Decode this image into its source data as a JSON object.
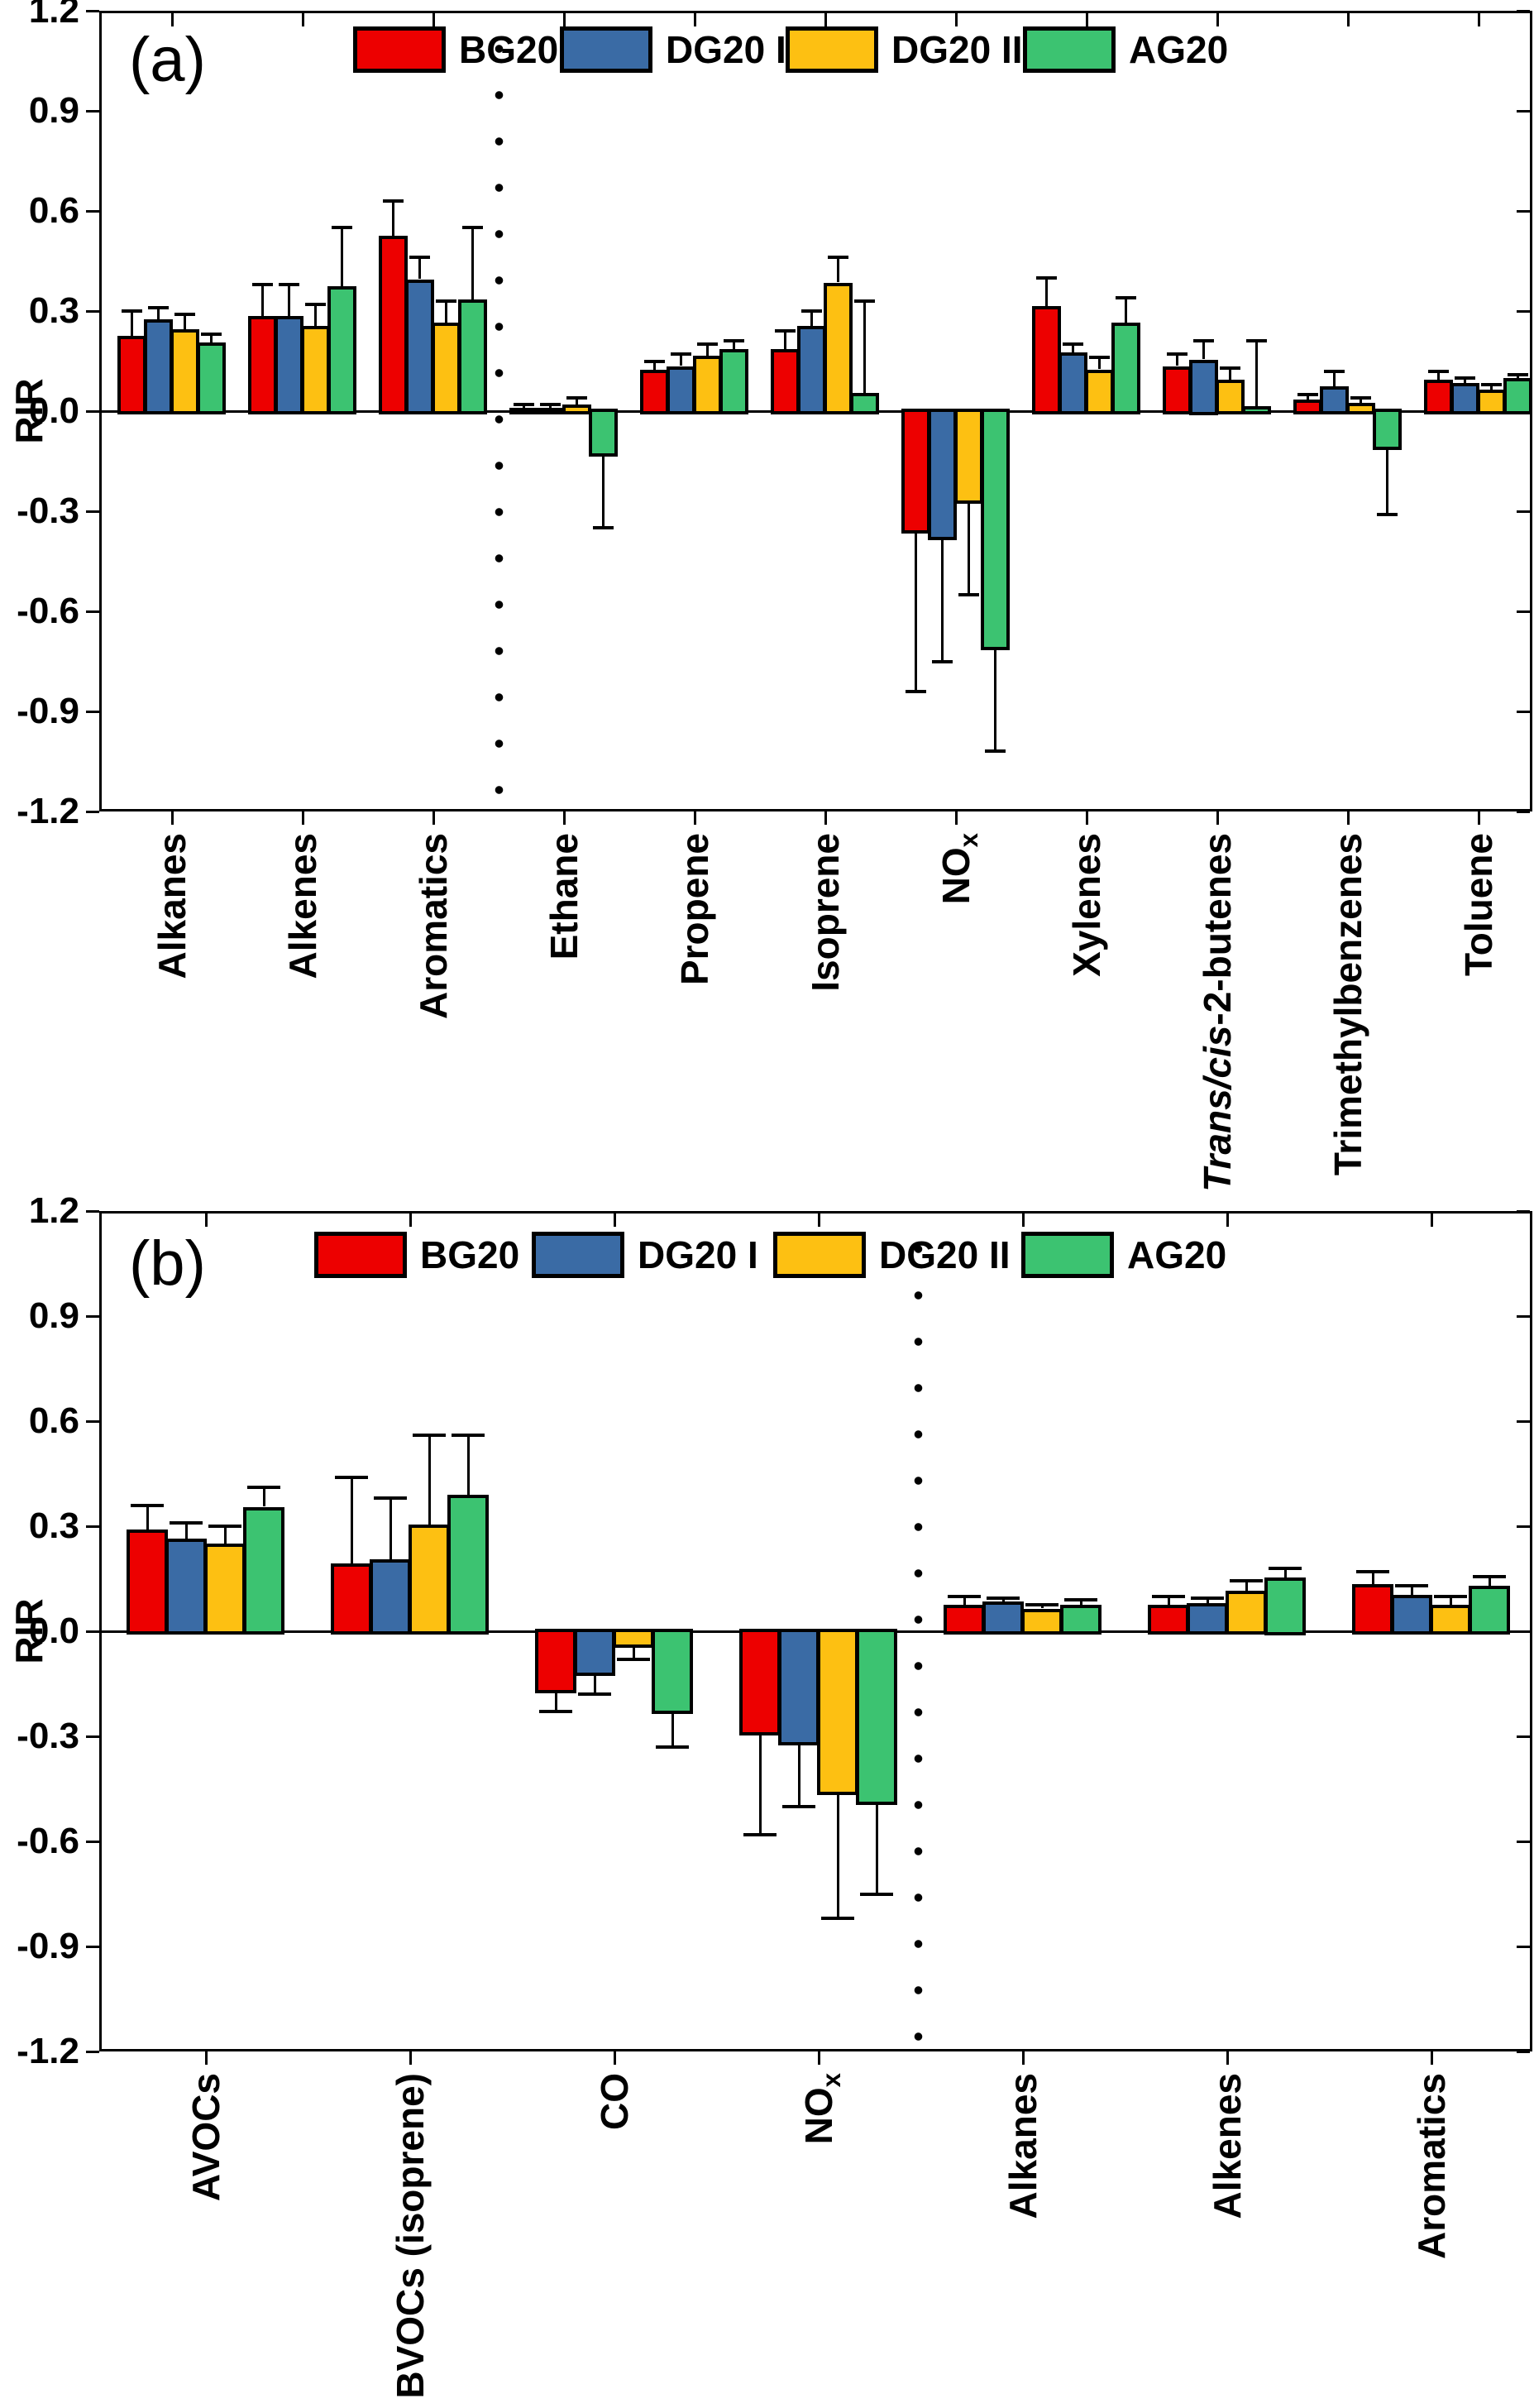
{
  "figure": {
    "background": "#ffffff",
    "axis_color": "#000000",
    "errorbars": "one-sided, drawn outward from bar end with cap"
  },
  "legend": {
    "position": "top-center-inside",
    "items": [
      {
        "label": "BG20",
        "color": "#ed0000"
      },
      {
        "label": "DG20 I",
        "color": "#3a6ba5"
      },
      {
        "label": "DG20 II",
        "color": "#fdc012"
      },
      {
        "label": "AG20",
        "color": "#3cc371"
      }
    ]
  },
  "chart_data": [
    {
      "type": "bar",
      "panel_letter": "(a)",
      "ylabel": "RIR",
      "ylim": [
        -1.2,
        1.2
      ],
      "ytick_step": 0.3,
      "yticks": [
        "1.2",
        "0.9",
        "0.6",
        "0.3",
        "0.0",
        "-0.3",
        "-0.6",
        "-0.9",
        "-1.2"
      ],
      "grid": false,
      "separator_dotted_after_category_index": 2,
      "categories": [
        {
          "label": "Alkanes"
        },
        {
          "label": "Alkenes"
        },
        {
          "label": "Aromatics"
        },
        {
          "label": "Ethane"
        },
        {
          "label": "Propene"
        },
        {
          "label": "Isoprene"
        },
        {
          "label": "NOx",
          "parts": [
            {
              "t": "NO"
            },
            {
              "t": "x",
              "sub": true
            }
          ]
        },
        {
          "label": "Xylenes"
        },
        {
          "label": "Trans/cis-2-butenes",
          "parts": [
            {
              "t": "Trans/cis",
              "italic": true
            },
            {
              "t": "-2-butenes"
            }
          ]
        },
        {
          "label": "Trimethylbenzenes"
        },
        {
          "label": "Toluene"
        }
      ],
      "series": [
        {
          "name": "BG20",
          "color": "#ed0000",
          "values": [
            0.22,
            0.28,
            0.52,
            0.005,
            0.12,
            0.18,
            -0.36,
            0.31,
            0.13,
            0.03,
            0.09
          ],
          "whiskers": [
            0.3,
            0.38,
            0.63,
            0.02,
            0.15,
            0.24,
            -0.84,
            0.4,
            0.17,
            0.05,
            0.12
          ]
        },
        {
          "name": "DG20 I",
          "color": "#3a6ba5",
          "values": [
            0.27,
            0.28,
            0.39,
            0.005,
            0.13,
            0.25,
            -0.38,
            0.17,
            0.15,
            0.07,
            0.08
          ],
          "whiskers": [
            0.31,
            0.38,
            0.46,
            0.02,
            0.17,
            0.3,
            -0.75,
            0.2,
            0.21,
            0.12,
            0.1
          ]
        },
        {
          "name": "DG20 II",
          "color": "#fdc012",
          "values": [
            0.24,
            0.25,
            0.26,
            0.015,
            0.16,
            0.38,
            -0.27,
            0.12,
            0.09,
            0.02,
            0.06
          ],
          "whiskers": [
            0.29,
            0.32,
            0.33,
            0.04,
            0.2,
            0.46,
            -0.55,
            0.16,
            0.13,
            0.04,
            0.08
          ]
        },
        {
          "name": "AG20",
          "color": "#3cc371",
          "values": [
            0.2,
            0.37,
            0.33,
            -0.13,
            0.18,
            0.05,
            -0.71,
            0.26,
            0.01,
            -0.11,
            0.095
          ],
          "whiskers": [
            0.23,
            0.55,
            0.55,
            -0.35,
            0.21,
            0.33,
            -1.02,
            0.34,
            0.21,
            -0.31,
            0.11
          ]
        }
      ]
    },
    {
      "type": "bar",
      "panel_letter": "(b)",
      "ylabel": "RIR",
      "ylim": [
        -1.2,
        1.2
      ],
      "ytick_step": 0.3,
      "yticks": [
        "1.2",
        "0.9",
        "0.6",
        "0.3",
        "0.0",
        "-0.3",
        "-0.6",
        "-0.9",
        "-1.2"
      ],
      "grid": false,
      "separator_dotted_after_category_index": 3,
      "categories": [
        {
          "label": "AVOCs"
        },
        {
          "label": "BVOCs (isoprene)"
        },
        {
          "label": "CO"
        },
        {
          "label": "NOx",
          "parts": [
            {
              "t": "NO"
            },
            {
              "t": "x",
              "sub": true
            }
          ]
        },
        {
          "label": "Alkanes"
        },
        {
          "label": "Alkenes"
        },
        {
          "label": "Aromatics"
        }
      ],
      "series": [
        {
          "name": "BG20",
          "color": "#ed0000",
          "values": [
            0.285,
            0.19,
            -0.17,
            -0.29,
            0.07,
            0.07,
            0.13
          ],
          "whiskers": [
            0.36,
            0.44,
            -0.23,
            -0.58,
            0.1,
            0.1,
            0.17
          ]
        },
        {
          "name": "DG20 I",
          "color": "#3a6ba5",
          "values": [
            0.26,
            0.2,
            -0.12,
            -0.32,
            0.08,
            0.075,
            0.1
          ],
          "whiskers": [
            0.31,
            0.38,
            -0.18,
            -0.5,
            0.095,
            0.095,
            0.13
          ]
        },
        {
          "name": "DG20 II",
          "color": "#fdc012",
          "values": [
            0.245,
            0.3,
            -0.04,
            -0.46,
            0.06,
            0.11,
            0.07
          ],
          "whiskers": [
            0.3,
            0.56,
            -0.08,
            -0.82,
            0.075,
            0.145,
            0.1
          ]
        },
        {
          "name": "AG20",
          "color": "#3cc371",
          "values": [
            0.35,
            0.385,
            -0.23,
            -0.49,
            0.07,
            0.15,
            0.125
          ],
          "whiskers": [
            0.41,
            0.56,
            -0.33,
            -0.75,
            0.09,
            0.18,
            0.155
          ]
        }
      ]
    }
  ]
}
